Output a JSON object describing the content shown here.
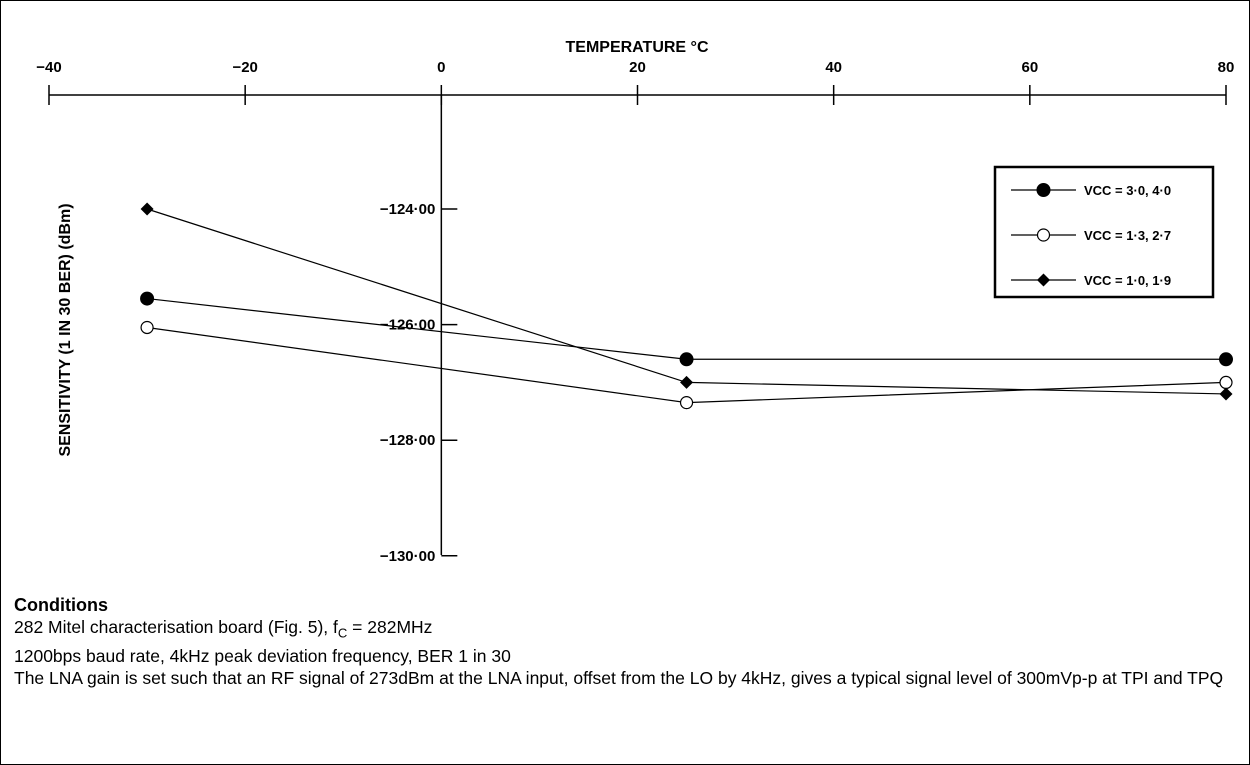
{
  "chart_data": {
    "type": "line",
    "title": "",
    "xlabel": "TEMPERATURE °C",
    "ylabel": "SENSITIVITY (1 IN 30 BER) (dBm)",
    "x_axis_position": "top",
    "x_ticks": [
      -40,
      -20,
      0,
      20,
      40,
      60,
      80
    ],
    "x_tick_labels": [
      "−40",
      "−20",
      "0",
      "20",
      "40",
      "60",
      "80"
    ],
    "y_ticks": [
      -124,
      -126,
      -128,
      -130
    ],
    "y_tick_labels": [
      "−124·00",
      "−126·00",
      "−128·00",
      "−130·00"
    ],
    "xlim": [
      -40,
      80
    ],
    "ylim": [
      -130,
      -121
    ],
    "grid": false,
    "legend_position": "top-right",
    "series": [
      {
        "name": "VCC = 3·0, 4·0",
        "marker": "filled-circle",
        "x": [
          -30,
          25,
          80
        ],
        "y": [
          -125.55,
          -126.6,
          -126.6
        ]
      },
      {
        "name": "VCC = 1·3, 2·7",
        "marker": "open-circle",
        "x": [
          -30,
          25,
          80
        ],
        "y": [
          -126.05,
          -127.35,
          -127.0
        ]
      },
      {
        "name": "VCC = 1·0, 1·9",
        "marker": "filled-diamond",
        "x": [
          -30,
          25,
          80
        ],
        "y": [
          -124.0,
          -127.0,
          -127.2
        ]
      }
    ]
  },
  "conditions": {
    "title": "Conditions",
    "line1_before": "282 Mitel characterisation board (Fig. 5), f",
    "line1_sub": "C",
    "line1_after": " = 282MHz",
    "line2": "1200bps baud rate, 4kHz peak deviation frequency, BER 1 in 30",
    "line3": "The LNA gain is set such that an RF signal of 273dBm at the LNA input, offset from the LO by 4kHz, gives a typical signal level of 300mVp-p at TPI and TPQ"
  }
}
